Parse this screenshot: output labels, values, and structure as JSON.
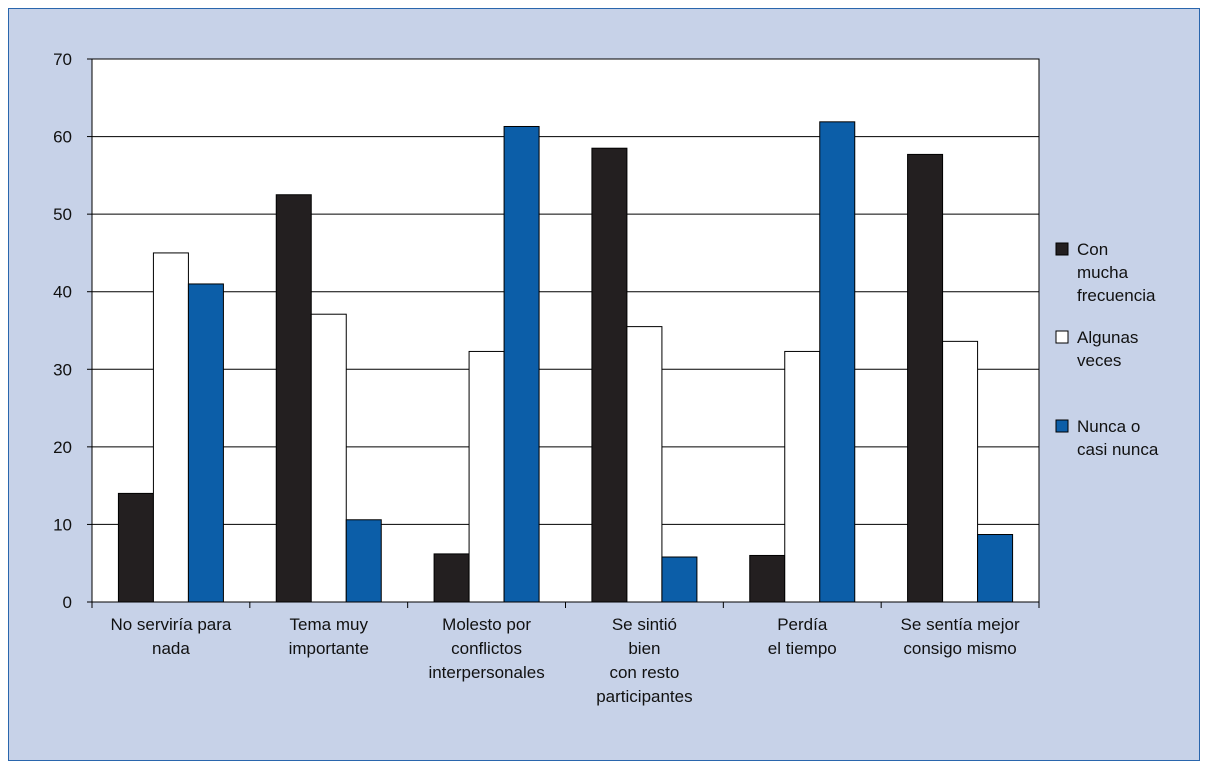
{
  "chart_data": {
    "type": "bar",
    "categories": [
      [
        "No serviría para",
        "nada"
      ],
      [
        "Tema muy",
        "importante"
      ],
      [
        "Molesto por",
        "conflictos",
        "interpersonales"
      ],
      [
        "Se sintió",
        "bien",
        "con resto",
        "participantes"
      ],
      [
        "Perdía",
        "el tiempo"
      ],
      [
        "Se sentía mejor",
        "consigo mismo"
      ]
    ],
    "series": [
      {
        "name": [
          "Con",
          "mucha",
          "frecuencia"
        ],
        "color": "#231f20",
        "values": [
          14,
          52.5,
          6.2,
          58.5,
          6,
          57.7
        ]
      },
      {
        "name": [
          "Algunas",
          "veces"
        ],
        "color": "#ffffff",
        "values": [
          45,
          37.1,
          32.3,
          35.5,
          32.3,
          33.6
        ]
      },
      {
        "name": [
          "Nunca o",
          "casi nunca"
        ],
        "color": "#0c5ea8",
        "values": [
          41,
          10.6,
          61.3,
          5.8,
          61.9,
          8.7
        ]
      }
    ],
    "ylim": [
      0,
      70
    ],
    "yticks": [
      0,
      10,
      20,
      30,
      40,
      50,
      60,
      70
    ],
    "grid": true,
    "legend": "right",
    "title": "",
    "xlabel": "",
    "ylabel": ""
  }
}
